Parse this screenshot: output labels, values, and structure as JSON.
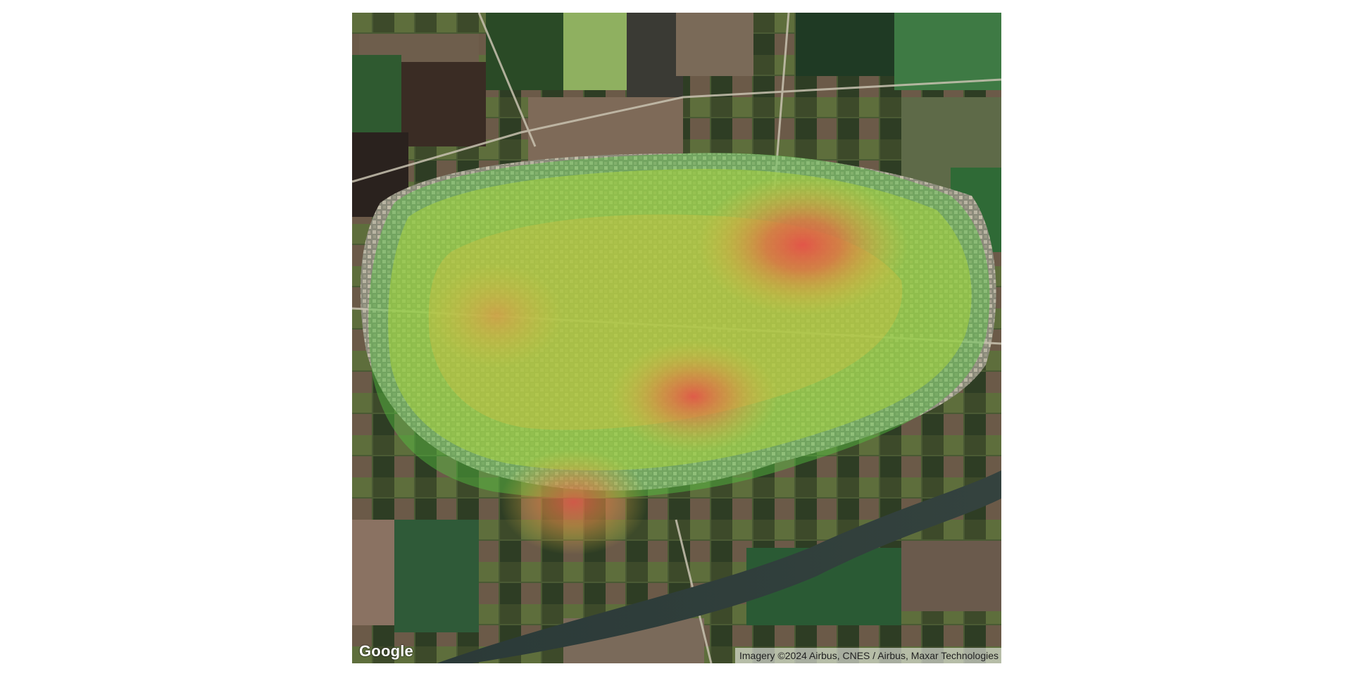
{
  "map": {
    "type": "satellite-heatmap",
    "logo_text": "Google",
    "attribution": "Imagery ©2024 Airbus, CNES / Airbus, Maxar Technologies",
    "heatmap_gradient": [
      "#3fbf3f",
      "#a8d23c",
      "#d8c040",
      "#e07a40",
      "#e84a48"
    ],
    "hotspots": [
      {
        "name": "north-east",
        "intensity": 1.0
      },
      {
        "name": "center",
        "intensity": 0.85
      },
      {
        "name": "south-west",
        "intensity": 0.75
      },
      {
        "name": "west",
        "intensity": 0.45
      }
    ]
  }
}
